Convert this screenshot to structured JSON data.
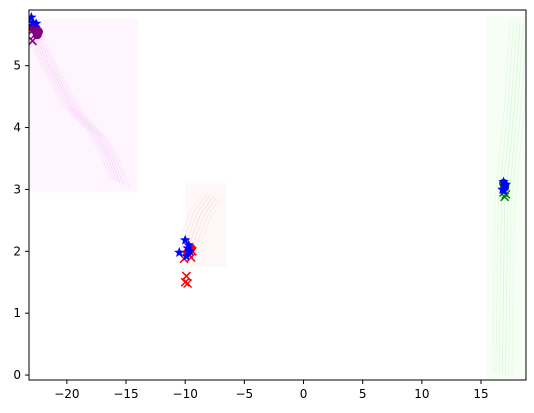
{
  "chart_data": {
    "type": "scatter",
    "title": "",
    "xlabel": "",
    "ylabel": "",
    "xlim": [
      -23.2,
      18.8
    ],
    "ylim": [
      -0.08,
      5.9
    ],
    "grid": false,
    "x_ticks": [
      -20,
      -15,
      -10,
      -5,
      0,
      5,
      10,
      15
    ],
    "x_tick_labels": [
      "−20",
      "−15",
      "−10",
      "−5",
      "0",
      "5",
      "10",
      "15"
    ],
    "y_ticks": [
      0,
      1,
      2,
      3,
      4,
      5
    ],
    "y_tick_labels": [
      "0",
      "1",
      "2",
      "3",
      "4",
      "5"
    ],
    "density_regions": [
      {
        "color": "#ee82ee",
        "x_range": [
          -23.2,
          -14.0
        ],
        "y_range": [
          2.95,
          5.75
        ],
        "ridge": [
          [
            -23,
            5.6
          ],
          [
            -21.5,
            5.0
          ],
          [
            -19.5,
            4.3
          ],
          [
            -17.5,
            3.9
          ],
          [
            -16.3,
            3.5
          ],
          [
            -15.5,
            3.1
          ]
        ]
      },
      {
        "color": "#f4a6a6",
        "x_range": [
          -10.0,
          -6.5
        ],
        "y_range": [
          1.75,
          3.1
        ],
        "ridge": [
          [
            -9.8,
            2.0
          ],
          [
            -9.3,
            2.3
          ],
          [
            -8.7,
            2.6
          ],
          [
            -7.6,
            2.9
          ]
        ]
      },
      {
        "color": "#90ee90",
        "x_range": [
          15.5,
          18.8
        ],
        "y_range": [
          -0.08,
          5.8
        ],
        "ridge": [
          [
            16.8,
            0.0
          ],
          [
            16.9,
            1.5
          ],
          [
            17.0,
            2.8
          ],
          [
            17.3,
            3.3
          ],
          [
            17.8,
            4.3
          ],
          [
            18.3,
            5.7
          ]
        ]
      }
    ],
    "series": [
      {
        "marker": "x",
        "color": "#800080",
        "points": [
          [
            -22.9,
            5.4
          ],
          [
            -23.0,
            5.55
          ],
          [
            -22.7,
            5.5
          ],
          [
            -22.8,
            5.65
          ]
        ]
      },
      {
        "marker": "o",
        "color": "#800080",
        "points": [
          [
            -22.4,
            5.55
          ],
          [
            -22.6,
            5.6
          ],
          [
            -22.9,
            5.62
          ],
          [
            -22.5,
            5.5
          ]
        ]
      },
      {
        "marker": "star",
        "color": "#0000ff",
        "points": [
          [
            -23.0,
            5.78
          ],
          [
            -22.9,
            5.7
          ],
          [
            -22.6,
            5.68
          ]
        ]
      },
      {
        "marker": "x",
        "color": "#ff0000",
        "points": [
          [
            -10.0,
            1.5
          ],
          [
            -9.9,
            1.6
          ],
          [
            -9.8,
            1.48
          ],
          [
            -10.1,
            1.88
          ],
          [
            -9.5,
            1.9
          ],
          [
            -9.7,
            1.95
          ],
          [
            -9.4,
            2.0
          ]
        ]
      },
      {
        "marker": "o",
        "color": "#ff0000",
        "points": [
          [
            -9.6,
            2.02
          ],
          [
            -9.8,
            1.98
          ],
          [
            -9.5,
            2.05
          ]
        ]
      },
      {
        "marker": "star",
        "color": "#0000ff",
        "points": [
          [
            -10.0,
            2.18
          ],
          [
            -10.5,
            1.98
          ],
          [
            -9.8,
            2.05
          ],
          [
            -9.6,
            2.0
          ],
          [
            -9.9,
            1.92
          ],
          [
            -9.7,
            2.1
          ]
        ]
      },
      {
        "marker": "x",
        "color": "#008000",
        "points": [
          [
            17.0,
            2.88
          ],
          [
            16.9,
            2.95
          ],
          [
            17.1,
            2.92
          ]
        ]
      },
      {
        "marker": "o",
        "color": "#008000",
        "points": [
          [
            17.0,
            3.05
          ],
          [
            16.9,
            3.1
          ]
        ]
      },
      {
        "marker": "star",
        "color": "#0000ff",
        "points": [
          [
            16.9,
            3.12
          ],
          [
            17.0,
            3.05
          ],
          [
            16.8,
            3.0
          ],
          [
            17.1,
            3.08
          ],
          [
            16.95,
            2.98
          ]
        ]
      }
    ]
  }
}
